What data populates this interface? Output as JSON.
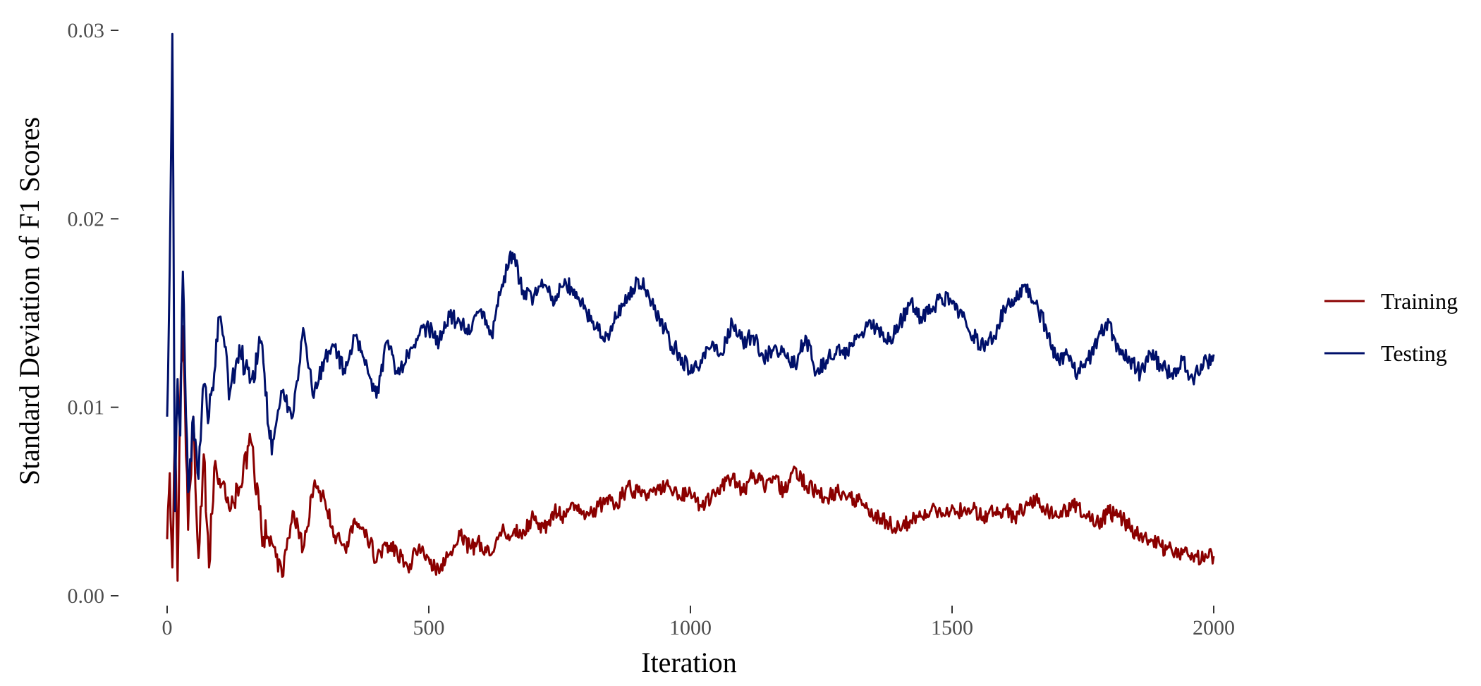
{
  "chart_data": {
    "type": "line",
    "title": "",
    "xlabel": "Iteration",
    "ylabel": "Standard Deviation of F1 Scores",
    "xlim": [
      0,
      2000
    ],
    "ylim": [
      0,
      0.03
    ],
    "x_ticks": [
      0,
      500,
      1000,
      1500,
      2000
    ],
    "x_tick_labels": [
      "0",
      "500",
      "1000",
      "1500",
      "2000"
    ],
    "y_ticks": [
      0,
      0.01,
      0.02,
      0.03
    ],
    "y_tick_labels": [
      "0.00",
      "0.01",
      "0.02",
      "0.03"
    ],
    "grid": false,
    "legend_position": "right",
    "series": [
      {
        "name": "Training",
        "color": "#8B0000",
        "x": [
          0,
          5,
          10,
          15,
          20,
          25,
          30,
          40,
          50,
          60,
          70,
          80,
          90,
          100,
          120,
          140,
          160,
          180,
          200,
          220,
          240,
          260,
          280,
          300,
          320,
          340,
          360,
          380,
          400,
          420,
          440,
          460,
          480,
          500,
          520,
          540,
          560,
          580,
          600,
          620,
          640,
          660,
          680,
          700,
          720,
          740,
          760,
          780,
          800,
          820,
          840,
          860,
          880,
          900,
          920,
          940,
          960,
          980,
          1000,
          1020,
          1040,
          1060,
          1080,
          1100,
          1120,
          1140,
          1160,
          1180,
          1200,
          1220,
          1240,
          1260,
          1280,
          1300,
          1320,
          1340,
          1360,
          1380,
          1400,
          1420,
          1440,
          1460,
          1480,
          1500,
          1520,
          1540,
          1560,
          1580,
          1600,
          1620,
          1640,
          1660,
          1680,
          1700,
          1720,
          1740,
          1760,
          1780,
          1800,
          1820,
          1840,
          1860,
          1880,
          1900,
          1920,
          1940,
          1960,
          1980,
          2000
        ],
        "values": [
          0.003,
          0.0065,
          0.0015,
          0.0085,
          0.0008,
          0.0105,
          0.0143,
          0.0035,
          0.0095,
          0.002,
          0.0075,
          0.0015,
          0.0068,
          0.0062,
          0.0045,
          0.0058,
          0.0082,
          0.0035,
          0.0028,
          0.001,
          0.0045,
          0.0025,
          0.0058,
          0.0052,
          0.0032,
          0.0025,
          0.0038,
          0.0035,
          0.0018,
          0.0028,
          0.0022,
          0.0015,
          0.0025,
          0.002,
          0.0012,
          0.0022,
          0.0032,
          0.0025,
          0.0028,
          0.0022,
          0.0035,
          0.0032,
          0.0035,
          0.0042,
          0.0036,
          0.0045,
          0.0042,
          0.0048,
          0.0042,
          0.0045,
          0.0052,
          0.0048,
          0.0058,
          0.0055,
          0.0052,
          0.0056,
          0.0058,
          0.0052,
          0.0055,
          0.0048,
          0.0052,
          0.0058,
          0.0062,
          0.0055,
          0.0065,
          0.0058,
          0.0063,
          0.0055,
          0.0068,
          0.0058,
          0.0056,
          0.0052,
          0.0055,
          0.0052,
          0.005,
          0.0046,
          0.0042,
          0.0038,
          0.0035,
          0.004,
          0.0042,
          0.0045,
          0.0042,
          0.0048,
          0.0044,
          0.0046,
          0.0042,
          0.0044,
          0.0046,
          0.0042,
          0.0048,
          0.0052,
          0.0046,
          0.0042,
          0.0045,
          0.0048,
          0.0042,
          0.0038,
          0.0044,
          0.0042,
          0.0036,
          0.0033,
          0.003,
          0.0026,
          0.0024,
          0.0022,
          0.0021,
          0.0019,
          0.0021
        ]
      },
      {
        "name": "Testing",
        "color": "#00106A",
        "x": [
          0,
          5,
          10,
          15,
          20,
          25,
          30,
          40,
          50,
          60,
          70,
          80,
          90,
          100,
          120,
          140,
          160,
          180,
          200,
          220,
          240,
          260,
          280,
          300,
          320,
          340,
          360,
          380,
          400,
          420,
          440,
          460,
          480,
          500,
          520,
          540,
          560,
          580,
          600,
          620,
          640,
          660,
          680,
          700,
          720,
          740,
          760,
          780,
          800,
          820,
          840,
          860,
          880,
          900,
          920,
          940,
          960,
          980,
          1000,
          1020,
          1040,
          1060,
          1080,
          1100,
          1120,
          1140,
          1160,
          1180,
          1200,
          1220,
          1240,
          1260,
          1280,
          1300,
          1320,
          1340,
          1360,
          1380,
          1400,
          1420,
          1440,
          1460,
          1480,
          1500,
          1520,
          1540,
          1560,
          1580,
          1600,
          1620,
          1640,
          1660,
          1680,
          1700,
          1720,
          1740,
          1760,
          1780,
          1800,
          1820,
          1840,
          1860,
          1880,
          1900,
          1920,
          1940,
          1960,
          1980,
          2000
        ],
        "values": [
          0.0095,
          0.0175,
          0.0298,
          0.0045,
          0.0115,
          0.0085,
          0.0172,
          0.0055,
          0.0095,
          0.0062,
          0.0112,
          0.0095,
          0.0118,
          0.0148,
          0.0108,
          0.0128,
          0.0115,
          0.0135,
          0.0075,
          0.0108,
          0.0095,
          0.0142,
          0.0105,
          0.0125,
          0.0132,
          0.0118,
          0.0138,
          0.0125,
          0.0105,
          0.0135,
          0.0118,
          0.0128,
          0.0138,
          0.0142,
          0.0135,
          0.0148,
          0.0145,
          0.014,
          0.0152,
          0.0138,
          0.0165,
          0.0182,
          0.0162,
          0.0158,
          0.0165,
          0.0155,
          0.0168,
          0.0158,
          0.0152,
          0.0142,
          0.0138,
          0.0148,
          0.0158,
          0.0168,
          0.016,
          0.0148,
          0.0135,
          0.0128,
          0.0118,
          0.0125,
          0.0132,
          0.0128,
          0.0145,
          0.0135,
          0.0138,
          0.0125,
          0.0132,
          0.0128,
          0.0122,
          0.0138,
          0.0118,
          0.0125,
          0.0132,
          0.0128,
          0.0138,
          0.0145,
          0.0142,
          0.0135,
          0.0145,
          0.0155,
          0.0148,
          0.0152,
          0.0158,
          0.0155,
          0.0148,
          0.0138,
          0.0132,
          0.0138,
          0.0152,
          0.0158,
          0.0165,
          0.0155,
          0.0142,
          0.0125,
          0.0128,
          0.0118,
          0.0125,
          0.0138,
          0.0145,
          0.0128,
          0.0125,
          0.0118,
          0.0128,
          0.0122,
          0.0118,
          0.0125,
          0.0115,
          0.0122,
          0.0128
        ]
      }
    ]
  }
}
